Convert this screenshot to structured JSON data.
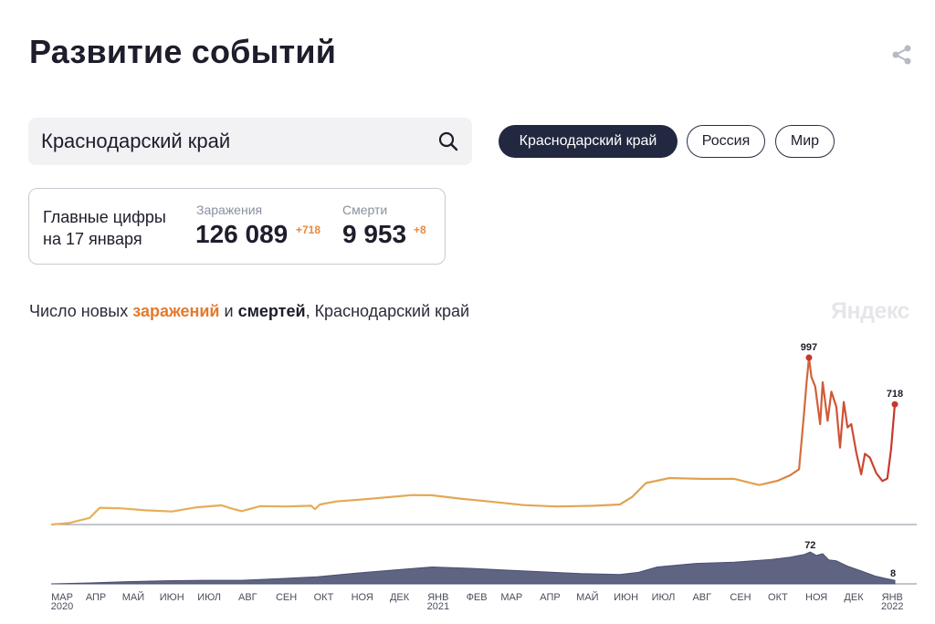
{
  "header": {
    "title": "Развитие событий"
  },
  "search": {
    "value": "Краснодарский край"
  },
  "tabs": [
    {
      "label": "Краснодарский край",
      "active": true
    },
    {
      "label": "Россия",
      "active": false
    },
    {
      "label": "Мир",
      "active": false
    }
  ],
  "summary": {
    "label_line1": "Главные цифры",
    "label_line2": "на 17 января",
    "cases_label": "Заражения",
    "cases_value": "126 089",
    "cases_delta": "+718",
    "deaths_label": "Смерти",
    "deaths_value": "9 953",
    "deaths_delta": "+8"
  },
  "chart_subtitle": {
    "part1": "Число новых ",
    "part2": "заражений",
    "part3": " и ",
    "part4": "смертей",
    "part5": ", Краснодарский край"
  },
  "watermark": "Яндекс",
  "colors": {
    "cases": "#e8b05a",
    "cases_peak": "#c8372d",
    "deaths": "#4a4f72",
    "accent": "#e37a2e"
  },
  "chart_data": [
    {
      "type": "line",
      "title": "",
      "series": [
        {
          "name": "заражений",
          "x": [
            "2020-03-10",
            "2020-03-25",
            "2020-04-10",
            "2020-04-18",
            "2020-05-05",
            "2020-05-25",
            "2020-06-15",
            "2020-07-05",
            "2020-07-25",
            "2020-08-01",
            "2020-08-10",
            "2020-08-25",
            "2020-09-15",
            "2020-10-05",
            "2020-10-08",
            "2020-10-12",
            "2020-10-25",
            "2020-11-15",
            "2020-12-05",
            "2020-12-25",
            "2021-01-10",
            "2021-02-01",
            "2021-02-25",
            "2021-03-25",
            "2021-04-20",
            "2021-05-20",
            "2021-06-10",
            "2021-06-20",
            "2021-07-01",
            "2021-07-20",
            "2021-08-15",
            "2021-09-10",
            "2021-09-30",
            "2021-10-15",
            "2021-10-25",
            "2021-11-01",
            "2021-11-05",
            "2021-11-07",
            "2021-11-09",
            "2021-11-11",
            "2021-11-14",
            "2021-11-18",
            "2021-11-20",
            "2021-11-24",
            "2021-11-27",
            "2021-12-01",
            "2021-12-04",
            "2021-12-07",
            "2021-12-10",
            "2021-12-13",
            "2021-12-17",
            "2021-12-21",
            "2021-12-24",
            "2021-12-28",
            "2022-01-02",
            "2022-01-07",
            "2022-01-11",
            "2022-01-14",
            "2022-01-17"
          ],
          "values": [
            0,
            10,
            40,
            100,
            97,
            85,
            78,
            103,
            115,
            98,
            80,
            110,
            108,
            112,
            92,
            120,
            138,
            150,
            163,
            176,
            175,
            155,
            138,
            116,
            108,
            112,
            120,
            165,
            248,
            278,
            273,
            273,
            236,
            262,
            295,
            330,
            660,
            840,
            997,
            880,
            825,
            600,
            850,
            620,
            793,
            705,
            460,
            732,
            580,
            600,
            430,
            300,
            423,
            400,
            308,
            260,
            275,
            450,
            718
          ]
        }
      ],
      "annotations": [
        "997",
        "718"
      ]
    },
    {
      "type": "area",
      "series": [
        {
          "name": "смертей",
          "x": [
            "2020-03-10",
            "2020-04-10",
            "2020-05-10",
            "2020-06-10",
            "2020-07-10",
            "2020-08-10",
            "2020-09-10",
            "2020-10-10",
            "2020-11-10",
            "2020-12-10",
            "2021-01-10",
            "2021-02-10",
            "2021-03-10",
            "2021-04-10",
            "2021-05-10",
            "2021-06-10",
            "2021-06-25",
            "2021-07-10",
            "2021-08-10",
            "2021-09-10",
            "2021-10-10",
            "2021-10-25",
            "2021-11-05",
            "2021-11-10",
            "2021-11-15",
            "2021-11-20",
            "2021-11-25",
            "2021-12-01",
            "2021-12-10",
            "2021-12-20",
            "2022-01-01",
            "2022-01-10",
            "2022-01-17"
          ],
          "values": [
            0,
            2,
            5,
            7,
            8,
            8,
            12,
            16,
            24,
            31,
            38,
            35,
            31,
            27,
            23,
            21,
            26,
            38,
            46,
            49,
            55,
            60,
            66,
            72,
            64,
            68,
            54,
            52,
            40,
            30,
            18,
            12,
            8
          ]
        }
      ],
      "annotations": [
        "72",
        "8"
      ]
    }
  ],
  "x_axis": {
    "ticks": [
      "МАР",
      "АПР",
      "МАЙ",
      "ИЮН",
      "ИЮЛ",
      "АВГ",
      "СЕН",
      "ОКТ",
      "НОЯ",
      "ДЕК",
      "ЯНВ",
      "ФЕВ",
      "МАР",
      "АПР",
      "МАЙ",
      "ИЮН",
      "ИЮЛ",
      "АВГ",
      "СЕН",
      "ОКТ",
      "НОЯ",
      "ДЕК",
      "ЯНВ"
    ],
    "tick_dates": [
      "2020-03-15",
      "2020-04-15",
      "2020-05-15",
      "2020-06-15",
      "2020-07-15",
      "2020-08-15",
      "2020-09-15",
      "2020-10-15",
      "2020-11-15",
      "2020-12-15",
      "2021-01-15",
      "2021-02-15",
      "2021-03-15",
      "2021-04-15",
      "2021-05-15",
      "2021-06-15",
      "2021-07-15",
      "2021-08-15",
      "2021-09-15",
      "2021-10-15",
      "2021-11-15",
      "2021-12-15",
      "2022-01-15"
    ],
    "years": [
      {
        "tick": 0,
        "label": "2020"
      },
      {
        "tick": 10,
        "label": "2021"
      },
      {
        "tick": 22,
        "label": "2022"
      }
    ]
  }
}
